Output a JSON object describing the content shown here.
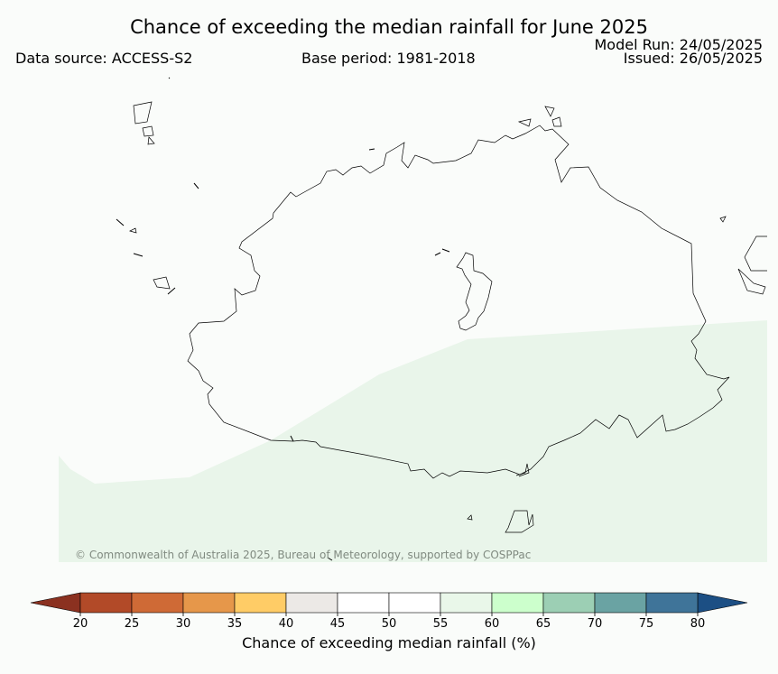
{
  "header": {
    "title": "Chance of exceeding the median rainfall for June 2025",
    "data_source": "Data source: ACCESS-S2",
    "base_period": "Base period: 1981-2018",
    "model_run": "Model Run: 24/05/2025",
    "issued": "Issued: 26/05/2025"
  },
  "map": {
    "copyright": "© Commonwealth of Australia 2025, Bureau of Meteorology, supported by COSPPac",
    "colors": {
      "background": "#fafcfa",
      "shaded_region": "#e9f5ea",
      "coastline": "#000000"
    },
    "shaded_region_category": "55-60"
  },
  "colorbar": {
    "label": "Chance of exceeding median rainfall (%)",
    "ticks": [
      "20",
      "25",
      "30",
      "35",
      "40",
      "45",
      "50",
      "55",
      "60",
      "65",
      "70",
      "75",
      "80"
    ],
    "under_color": "#8b3120",
    "over_color": "#1c4f84",
    "colors": [
      "#b24a28",
      "#cf6a36",
      "#e6974a",
      "#ffcc66",
      "#ece9e6",
      "#ffffff",
      "#ffffff",
      "#e9f7e9",
      "#ccffcc",
      "#9ccfb4",
      "#6aa3a3",
      "#3f7499"
    ]
  }
}
